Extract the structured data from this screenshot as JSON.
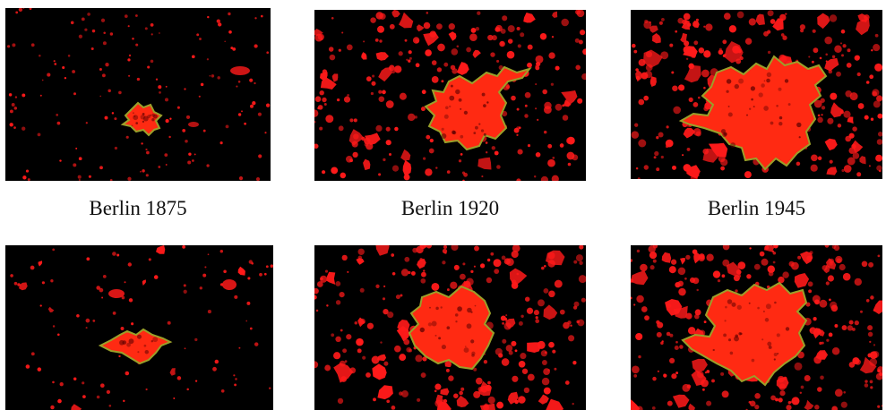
{
  "figure": {
    "captions": [
      "Berlin 1875",
      "Berlin 1920",
      "Berlin 1945"
    ],
    "colors": {
      "background": "#000000",
      "urban": "#ff1a1a",
      "core_fill": "#ff2a12",
      "boundary": "#9aa02a"
    },
    "panels": [
      {
        "id": "berlin-1875-map",
        "row": 1,
        "col": 1,
        "urban_extent": "small",
        "label_index": 0
      },
      {
        "id": "berlin-1920-map",
        "row": 1,
        "col": 2,
        "urban_extent": "medium",
        "label_index": 1
      },
      {
        "id": "berlin-1945-map",
        "row": 1,
        "col": 3,
        "urban_extent": "large",
        "label_index": 2
      },
      {
        "id": "unlabeled-map-small",
        "row": 2,
        "col": 1,
        "urban_extent": "small"
      },
      {
        "id": "unlabeled-map-medium",
        "row": 2,
        "col": 2,
        "urban_extent": "medium"
      },
      {
        "id": "unlabeled-map-large",
        "row": 2,
        "col": 3,
        "urban_extent": "large"
      }
    ]
  }
}
